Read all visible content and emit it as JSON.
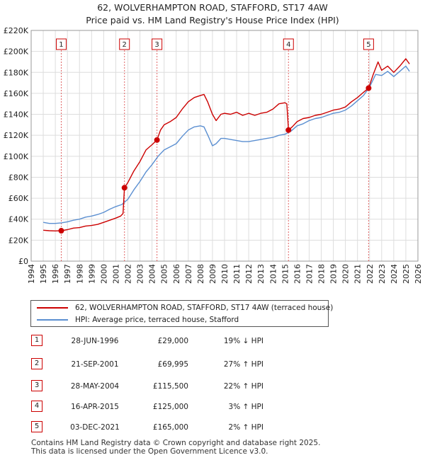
{
  "chart_data": {
    "type": "line",
    "title": "62, WOLVERHAMPTON ROAD, STAFFORD, ST17 4AW",
    "subtitle": "Price paid vs. HM Land Registry's House Price Index (HPI)",
    "xlim": [
      1994,
      2026
    ],
    "ylim": [
      0,
      220000
    ],
    "x_ticks": [
      1994,
      1995,
      1996,
      1997,
      1998,
      1999,
      2000,
      2001,
      2002,
      2003,
      2004,
      2005,
      2006,
      2007,
      2008,
      2009,
      2010,
      2011,
      2012,
      2013,
      2014,
      2015,
      2016,
      2017,
      2018,
      2019,
      2020,
      2021,
      2022,
      2023,
      2024,
      2025,
      2026
    ],
    "y_ticks": [
      0,
      20000,
      40000,
      60000,
      80000,
      100000,
      120000,
      140000,
      160000,
      180000,
      200000,
      220000
    ],
    "y_tick_labels": [
      "£0",
      "£20K",
      "£40K",
      "£60K",
      "£80K",
      "£100K",
      "£120K",
      "£140K",
      "£160K",
      "£180K",
      "£200K",
      "£220K"
    ],
    "grid": true,
    "series": [
      {
        "name": "62, WOLVERHAMPTON ROAD, STAFFORD, ST17 4AW (terraced house)",
        "color": "#cc0000",
        "points": [
          [
            1995.0,
            29500
          ],
          [
            1995.5,
            29000
          ],
          [
            1996.0,
            28800
          ],
          [
            1996.49,
            29000
          ],
          [
            1997.0,
            30000
          ],
          [
            1997.5,
            31500
          ],
          [
            1998.0,
            32000
          ],
          [
            1998.5,
            33500
          ],
          [
            1999.0,
            34000
          ],
          [
            1999.5,
            35000
          ],
          [
            2000.0,
            37000
          ],
          [
            2000.5,
            39000
          ],
          [
            2001.0,
            41000
          ],
          [
            2001.4,
            43000
          ],
          [
            2001.6,
            45500
          ],
          [
            2001.72,
            69995
          ],
          [
            2002.0,
            75000
          ],
          [
            2002.5,
            86000
          ],
          [
            2003.0,
            95000
          ],
          [
            2003.5,
            106000
          ],
          [
            2004.0,
            111000
          ],
          [
            2004.41,
            115500
          ],
          [
            2004.7,
            125000
          ],
          [
            2005.0,
            130000
          ],
          [
            2005.5,
            133000
          ],
          [
            2006.0,
            137000
          ],
          [
            2006.5,
            145000
          ],
          [
            2007.0,
            152000
          ],
          [
            2007.5,
            156000
          ],
          [
            2008.0,
            158000
          ],
          [
            2008.3,
            159000
          ],
          [
            2008.6,
            152000
          ],
          [
            2009.0,
            140000
          ],
          [
            2009.3,
            134000
          ],
          [
            2009.7,
            140000
          ],
          [
            2010.0,
            141000
          ],
          [
            2010.5,
            140000
          ],
          [
            2011.0,
            142000
          ],
          [
            2011.5,
            139000
          ],
          [
            2012.0,
            141000
          ],
          [
            2012.5,
            139000
          ],
          [
            2013.0,
            141000
          ],
          [
            2013.5,
            142000
          ],
          [
            2014.0,
            145000
          ],
          [
            2014.5,
            150000
          ],
          [
            2015.0,
            151000
          ],
          [
            2015.15,
            150000
          ],
          [
            2015.29,
            125000
          ],
          [
            2015.6,
            128000
          ],
          [
            2016.0,
            133000
          ],
          [
            2016.5,
            136000
          ],
          [
            2017.0,
            137000
          ],
          [
            2017.5,
            139000
          ],
          [
            2018.0,
            140000
          ],
          [
            2018.5,
            142000
          ],
          [
            2019.0,
            144000
          ],
          [
            2019.5,
            145000
          ],
          [
            2020.0,
            147000
          ],
          [
            2020.5,
            152000
          ],
          [
            2021.0,
            156000
          ],
          [
            2021.5,
            161000
          ],
          [
            2021.92,
            165000
          ],
          [
            2022.3,
            178000
          ],
          [
            2022.7,
            190000
          ],
          [
            2023.0,
            182000
          ],
          [
            2023.5,
            186000
          ],
          [
            2024.0,
            180000
          ],
          [
            2024.5,
            186000
          ],
          [
            2025.0,
            193000
          ],
          [
            2025.3,
            188000
          ]
        ]
      },
      {
        "name": "HPI: Average price, terraced house, Stafford",
        "color": "#5b8fd1",
        "points": [
          [
            1995.0,
            37000
          ],
          [
            1995.5,
            36000
          ],
          [
            1996.0,
            36000
          ],
          [
            1996.5,
            36500
          ],
          [
            1997.0,
            37500
          ],
          [
            1997.5,
            39000
          ],
          [
            1998.0,
            40000
          ],
          [
            1998.5,
            42000
          ],
          [
            1999.0,
            43000
          ],
          [
            1999.5,
            44500
          ],
          [
            2000.0,
            46500
          ],
          [
            2000.5,
            49500
          ],
          [
            2001.0,
            52000
          ],
          [
            2001.5,
            54000
          ],
          [
            2002.0,
            59000
          ],
          [
            2002.5,
            68000
          ],
          [
            2003.0,
            76000
          ],
          [
            2003.5,
            85000
          ],
          [
            2004.0,
            92000
          ],
          [
            2004.5,
            100000
          ],
          [
            2005.0,
            106000
          ],
          [
            2005.5,
            109000
          ],
          [
            2006.0,
            112000
          ],
          [
            2006.5,
            119000
          ],
          [
            2007.0,
            125000
          ],
          [
            2007.5,
            128000
          ],
          [
            2008.0,
            129000
          ],
          [
            2008.3,
            128000
          ],
          [
            2008.7,
            118000
          ],
          [
            2009.0,
            110000
          ],
          [
            2009.3,
            112000
          ],
          [
            2009.7,
            117000
          ],
          [
            2010.0,
            117000
          ],
          [
            2010.5,
            116000
          ],
          [
            2011.0,
            115000
          ],
          [
            2011.5,
            114000
          ],
          [
            2012.0,
            114000
          ],
          [
            2012.5,
            115000
          ],
          [
            2013.0,
            116000
          ],
          [
            2013.5,
            117000
          ],
          [
            2014.0,
            118000
          ],
          [
            2014.5,
            120000
          ],
          [
            2015.0,
            121000
          ],
          [
            2015.5,
            124000
          ],
          [
            2016.0,
            129000
          ],
          [
            2016.5,
            131000
          ],
          [
            2017.0,
            134000
          ],
          [
            2017.5,
            136000
          ],
          [
            2018.0,
            137000
          ],
          [
            2018.5,
            139000
          ],
          [
            2019.0,
            141000
          ],
          [
            2019.5,
            142000
          ],
          [
            2020.0,
            144000
          ],
          [
            2020.5,
            148000
          ],
          [
            2021.0,
            153000
          ],
          [
            2021.5,
            158000
          ],
          [
            2022.0,
            166000
          ],
          [
            2022.5,
            178000
          ],
          [
            2023.0,
            177000
          ],
          [
            2023.5,
            181000
          ],
          [
            2024.0,
            176000
          ],
          [
            2024.5,
            181000
          ],
          [
            2025.0,
            186000
          ],
          [
            2025.3,
            181000
          ]
        ]
      }
    ],
    "transactions": [
      {
        "num": "1",
        "x": 1996.49,
        "price": 29000
      },
      {
        "num": "2",
        "x": 2001.72,
        "price": 69995
      },
      {
        "num": "3",
        "x": 2004.41,
        "price": 115500
      },
      {
        "num": "4",
        "x": 2015.29,
        "price": 125000
      },
      {
        "num": "5",
        "x": 2021.92,
        "price": 165000
      }
    ]
  },
  "legend": {
    "red_label": "62, WOLVERHAMPTON ROAD, STAFFORD, ST17 4AW (terraced house)",
    "blue_label": "HPI: Average price, terraced house, Stafford"
  },
  "table": [
    {
      "num": "1",
      "date": "28-JUN-1996",
      "price": "£29,000",
      "hpi": "19% ↓ HPI"
    },
    {
      "num": "2",
      "date": "21-SEP-2001",
      "price": "£69,995",
      "hpi": "27% ↑ HPI"
    },
    {
      "num": "3",
      "date": "28-MAY-2004",
      "price": "£115,500",
      "hpi": "22% ↑ HPI"
    },
    {
      "num": "4",
      "date": "16-APR-2015",
      "price": "£125,000",
      "hpi": "3% ↑ HPI"
    },
    {
      "num": "5",
      "date": "03-DEC-2021",
      "price": "£165,000",
      "hpi": "2% ↑ HPI"
    }
  ],
  "footer": {
    "line1": "Contains HM Land Registry data © Crown copyright and database right 2025.",
    "line2": "This data is licensed under the Open Government Licence v3.0."
  }
}
